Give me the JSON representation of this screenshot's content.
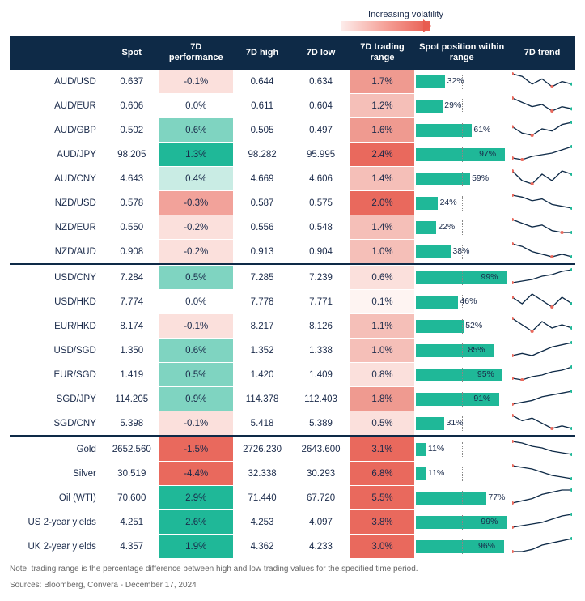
{
  "volatility_caption": "Increasing volatility",
  "headers": [
    "",
    "Spot",
    "7D performance",
    "7D high",
    "7D low",
    "7D trading range",
    "Spot position within range",
    "7D trend"
  ],
  "footnote1": "Note: trading range is the percentage difference between high and low trading values for the specified time period.",
  "footnote2": "Sources: Bloomberg, Convera - December 17, 2024",
  "colors": {
    "header_bg": "#0e2a47",
    "bar_fill": "#1fb898",
    "perf_scale": {
      "neg_strong": "#e9695d",
      "neg_mid": "#f2a29a",
      "neg_light": "#fbe0dc",
      "neutral": "#ffffff",
      "pos_light": "#c9ece4",
      "pos_mid": "#7fd4c1",
      "pos_strong": "#1fb898"
    },
    "range_scale": {
      "r0": "#fef4f2",
      "r1": "#fbe0dc",
      "r2": "#f5bfb8",
      "r3": "#ef9a90",
      "r4": "#e9695d"
    }
  },
  "groups": [
    {
      "rows": [
        {
          "name": "AUD/USD",
          "spot": "0.637",
          "perf": -0.1,
          "high": "0.644",
          "low": "0.634",
          "range": 1.7,
          "pos": 32,
          "spark": [
            10,
            9,
            6,
            8,
            5,
            7,
            6
          ]
        },
        {
          "name": "AUD/EUR",
          "spot": "0.606",
          "perf": 0.0,
          "high": "0.611",
          "low": "0.604",
          "range": 1.2,
          "pos": 29,
          "spark": [
            10,
            8,
            6,
            7,
            4,
            6,
            5
          ]
        },
        {
          "name": "AUD/GBP",
          "spot": "0.502",
          "perf": 0.6,
          "high": "0.505",
          "low": "0.497",
          "range": 1.6,
          "pos": 61,
          "spark": [
            7,
            4,
            3,
            6,
            5,
            8,
            9
          ]
        },
        {
          "name": "AUD/JPY",
          "spot": "98.205",
          "perf": 1.3,
          "high": "98.282",
          "low": "95.995",
          "range": 2.4,
          "pos": 97,
          "spark": [
            3,
            2,
            4,
            5,
            6,
            8,
            10
          ]
        },
        {
          "name": "AUD/CNY",
          "spot": "4.643",
          "perf": 0.4,
          "high": "4.669",
          "low": "4.606",
          "range": 1.4,
          "pos": 59,
          "spark": [
            8,
            5,
            4,
            7,
            5,
            8,
            7
          ]
        },
        {
          "name": "NZD/USD",
          "spot": "0.578",
          "perf": -0.3,
          "high": "0.587",
          "low": "0.575",
          "range": 2.0,
          "pos": 24,
          "spark": [
            10,
            9,
            7,
            8,
            5,
            4,
            3
          ]
        },
        {
          "name": "NZD/EUR",
          "spot": "0.550",
          "perf": -0.2,
          "high": "0.556",
          "low": "0.548",
          "range": 1.4,
          "pos": 22,
          "spark": [
            10,
            8,
            6,
            7,
            4,
            3,
            3
          ]
        },
        {
          "name": "NZD/AUD",
          "spot": "0.908",
          "perf": -0.2,
          "high": "0.913",
          "low": "0.904",
          "range": 1.0,
          "pos": 38,
          "spark": [
            9,
            8,
            6,
            5,
            4,
            5,
            4
          ]
        }
      ]
    },
    {
      "rows": [
        {
          "name": "USD/CNY",
          "spot": "7.284",
          "perf": 0.5,
          "high": "7.285",
          "low": "7.239",
          "range": 0.6,
          "pos": 99,
          "spark": [
            2,
            3,
            4,
            6,
            7,
            9,
            10
          ]
        },
        {
          "name": "USD/HKD",
          "spot": "7.774",
          "perf": 0.0,
          "high": "7.778",
          "low": "7.771",
          "range": 0.1,
          "pos": 46,
          "spark": [
            7,
            5,
            8,
            6,
            4,
            7,
            5
          ]
        },
        {
          "name": "EUR/HKD",
          "spot": "8.174",
          "perf": -0.1,
          "high": "8.217",
          "low": "8.126",
          "range": 1.1,
          "pos": 52,
          "spark": [
            8,
            6,
            4,
            7,
            5,
            6,
            5
          ]
        },
        {
          "name": "USD/SGD",
          "spot": "1.350",
          "perf": 0.6,
          "high": "1.352",
          "low": "1.338",
          "range": 1.0,
          "pos": 85,
          "spark": [
            3,
            4,
            3,
            5,
            7,
            8,
            9
          ]
        },
        {
          "name": "EUR/SGD",
          "spot": "1.419",
          "perf": 0.5,
          "high": "1.420",
          "low": "1.409",
          "range": 0.8,
          "pos": 95,
          "spark": [
            3,
            2,
            4,
            5,
            7,
            8,
            10
          ]
        },
        {
          "name": "SGD/JPY",
          "spot": "114.205",
          "perf": 0.9,
          "high": "114.378",
          "low": "112.403",
          "range": 1.8,
          "pos": 91,
          "spark": [
            2,
            3,
            4,
            6,
            7,
            8,
            9
          ]
        },
        {
          "name": "SGD/CNY",
          "spot": "5.398",
          "perf": -0.1,
          "high": "5.418",
          "low": "5.389",
          "range": 0.5,
          "pos": 31,
          "spark": [
            9,
            7,
            8,
            6,
            4,
            5,
            4
          ]
        }
      ]
    },
    {
      "rows": [
        {
          "name": "Gold",
          "spot": "2652.560",
          "perf": -1.5,
          "high": "2726.230",
          "low": "2643.600",
          "range": 3.1,
          "pos": 11,
          "spark": [
            10,
            9,
            7,
            6,
            4,
            3,
            2
          ]
        },
        {
          "name": "Silver",
          "spot": "30.519",
          "perf": -4.4,
          "high": "32.338",
          "low": "30.293",
          "range": 6.8,
          "pos": 11,
          "spark": [
            10,
            9,
            8,
            6,
            4,
            3,
            2
          ]
        },
        {
          "name": "Oil (WTI)",
          "spot": "70.600",
          "perf": 2.9,
          "high": "71.440",
          "low": "67.720",
          "range": 5.5,
          "pos": 77,
          "spark": [
            2,
            3,
            4,
            6,
            7,
            8,
            8
          ]
        },
        {
          "name": "US 2-year yields",
          "spot": "4.251",
          "perf": 2.6,
          "high": "4.253",
          "low": "4.097",
          "range": 3.8,
          "pos": 99,
          "spark": [
            2,
            3,
            4,
            5,
            7,
            9,
            10
          ]
        },
        {
          "name": "UK 2-year yields",
          "spot": "4.357",
          "perf": 1.9,
          "high": "4.362",
          "low": "4.233",
          "range": 3.0,
          "pos": 96,
          "spark": [
            3,
            3,
            4,
            6,
            7,
            8,
            9
          ]
        }
      ]
    }
  ]
}
